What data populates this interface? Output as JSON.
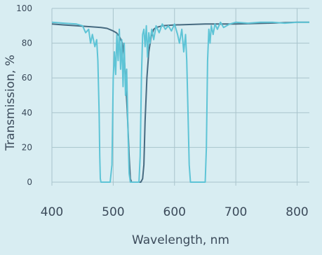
{
  "chart_data": {
    "type": "line",
    "title": "",
    "xlabel": "Wavelength, nm",
    "ylabel": "Transmission, %",
    "xlim": [
      400,
      820
    ],
    "ylim": [
      -2,
      100
    ],
    "xticks": [
      400,
      500,
      600,
      700,
      800
    ],
    "yticks": [
      0,
      20,
      40,
      60,
      80,
      100
    ],
    "grid": true,
    "series": [
      {
        "color": "#466a80",
        "x": [
          400,
          420,
          440,
          460,
          480,
          490,
          500,
          505,
          510,
          515,
          518,
          520,
          523,
          526,
          528,
          530,
          535,
          540,
          545,
          548,
          550,
          552,
          555,
          558,
          562,
          566,
          570,
          580,
          600,
          650,
          700,
          750,
          800,
          820
        ],
        "y": [
          91,
          90.5,
          90,
          89.5,
          89,
          88.5,
          87,
          86,
          84,
          80,
          72,
          60,
          40,
          15,
          2,
          0,
          0,
          0,
          0,
          2,
          10,
          35,
          60,
          75,
          84,
          88,
          89,
          90,
          90.5,
          91,
          91,
          91.5,
          92,
          92
        ]
      },
      {
        "color": "#5ec4d6",
        "x": [
          400,
          420,
          440,
          450,
          455,
          460,
          463,
          466,
          470,
          473,
          475,
          477,
          478,
          479,
          480,
          485,
          490,
          495,
          498,
          500,
          502,
          504,
          506,
          508,
          510,
          512,
          514,
          516,
          518,
          520,
          522,
          524,
          526,
          528,
          530,
          535,
          540,
          542,
          544,
          546,
          548,
          550,
          552,
          554,
          556,
          558,
          560,
          563,
          566,
          570,
          575,
          580,
          585,
          590,
          595,
          600,
          605,
          608,
          612,
          615,
          618,
          620,
          622,
          624,
          626,
          628,
          630,
          635,
          640,
          645,
          650,
          652,
          654,
          656,
          658,
          660,
          663,
          666,
          670,
          675,
          680,
          690,
          700,
          720,
          740,
          760,
          780,
          800,
          820
        ],
        "y": [
          92,
          91.5,
          91,
          90,
          86,
          88,
          80,
          85,
          78,
          82,
          70,
          40,
          15,
          2,
          0,
          0,
          0,
          0,
          10,
          60,
          75,
          62,
          85,
          70,
          88,
          65,
          82,
          55,
          80,
          50,
          65,
          30,
          5,
          0,
          0,
          0,
          0,
          0,
          15,
          60,
          85,
          88,
          78,
          90,
          72,
          86,
          80,
          88,
          82,
          90,
          86,
          91,
          88,
          90,
          87,
          91,
          85,
          80,
          88,
          75,
          85,
          70,
          40,
          10,
          0,
          0,
          0,
          0,
          0,
          0,
          0,
          20,
          70,
          88,
          80,
          90,
          85,
          91,
          88,
          92,
          89,
          91,
          92,
          91.5,
          92,
          92,
          91.5,
          92,
          92
        ]
      }
    ]
  }
}
